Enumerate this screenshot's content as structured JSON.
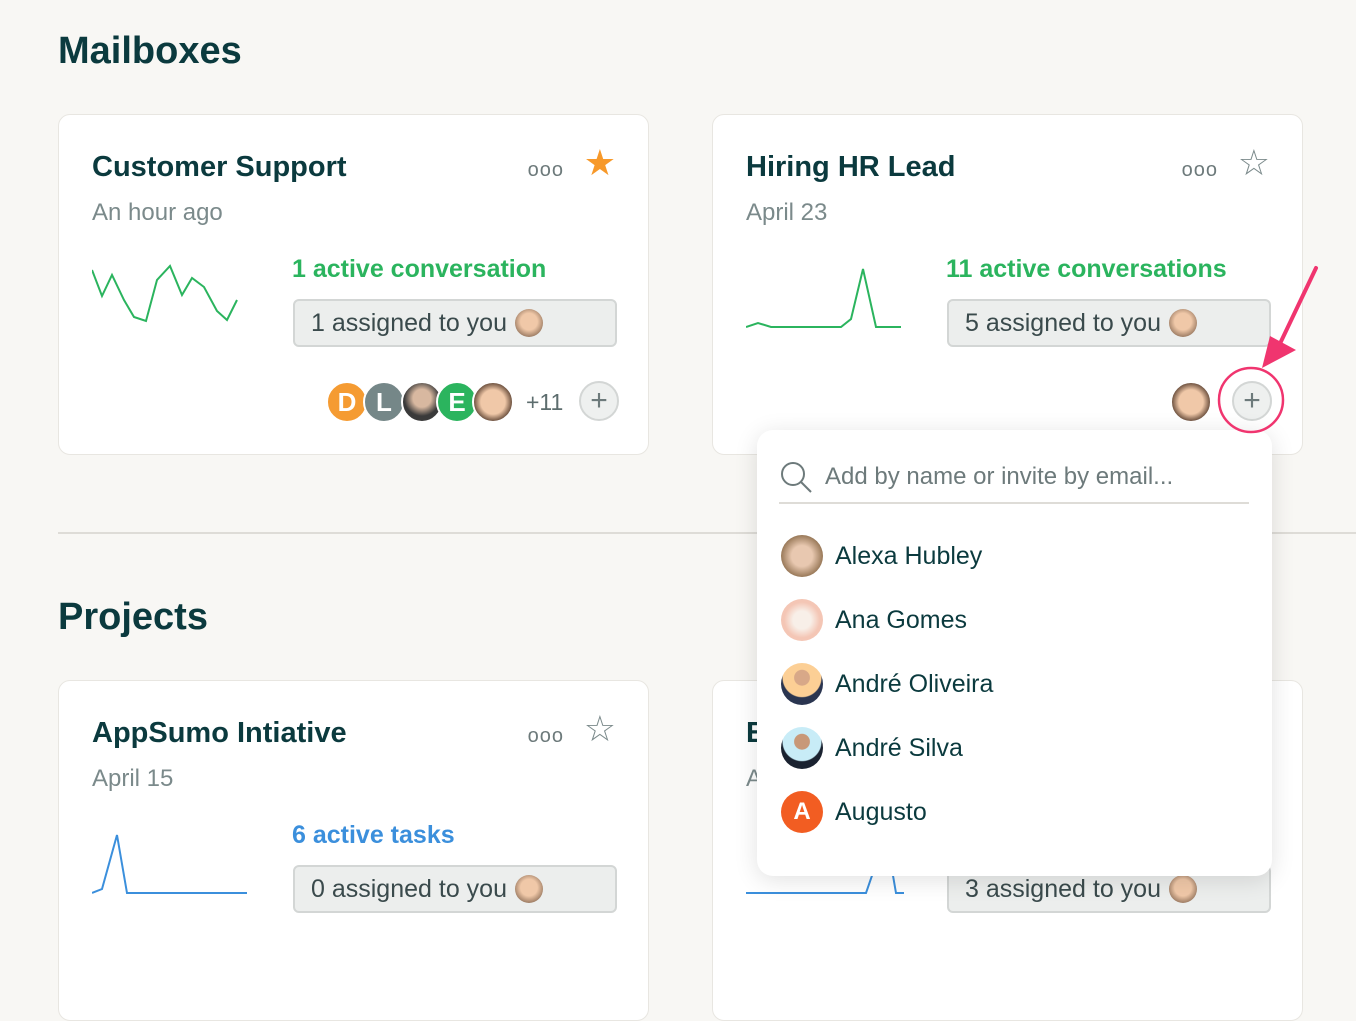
{
  "sections": {
    "mailboxes": "Mailboxes",
    "projects": "Projects"
  },
  "colors": {
    "green": "#2bb45e",
    "blue": "#3b8fdc",
    "star": "#f7992a",
    "highlight": "#f0356f"
  },
  "mailboxes": [
    {
      "title": "Customer Support",
      "subtitle": "An hour ago",
      "active": "1 active conversation",
      "assigned": "1 assigned to you",
      "starred": true,
      "members": [
        {
          "initial": "D",
          "color": "#f59b32"
        },
        {
          "initial": "L",
          "color": "#758788"
        },
        {
          "initial": "",
          "color": "#4a4a4a",
          "icon": "photo"
        },
        {
          "initial": "E",
          "color": "#2bb45e"
        },
        {
          "initial": "",
          "color": "#e8c4a8",
          "icon": "photo"
        }
      ],
      "more_members": "+11"
    },
    {
      "title": "Hiring HR Lead",
      "subtitle": "April 23",
      "active": "11 active conversations",
      "assigned": "5 assigned to you",
      "starred": false
    }
  ],
  "projects": [
    {
      "title": "AppSumo Intiative",
      "subtitle": "April 15",
      "active": "6 active tasks",
      "assigned": "0 assigned to you",
      "starred": false
    },
    {
      "title": "E",
      "subtitle": "A",
      "assigned": "3 assigned to you",
      "starred": false
    }
  ],
  "more_label": "ooo",
  "dropdown": {
    "placeholder": "Add by name or invite by email...",
    "value": "",
    "people": [
      {
        "name": "Alexa Hubley",
        "bg": "#d9c0a8"
      },
      {
        "name": "Ana Gomes",
        "bg": "#f4c6b5"
      },
      {
        "name": "André Oliveira",
        "bg": "#fccf95"
      },
      {
        "name": "André Silva",
        "bg": "#c8ecf7"
      },
      {
        "name": "Augusto",
        "bg": "#f25d22",
        "initial": "A"
      }
    ]
  }
}
